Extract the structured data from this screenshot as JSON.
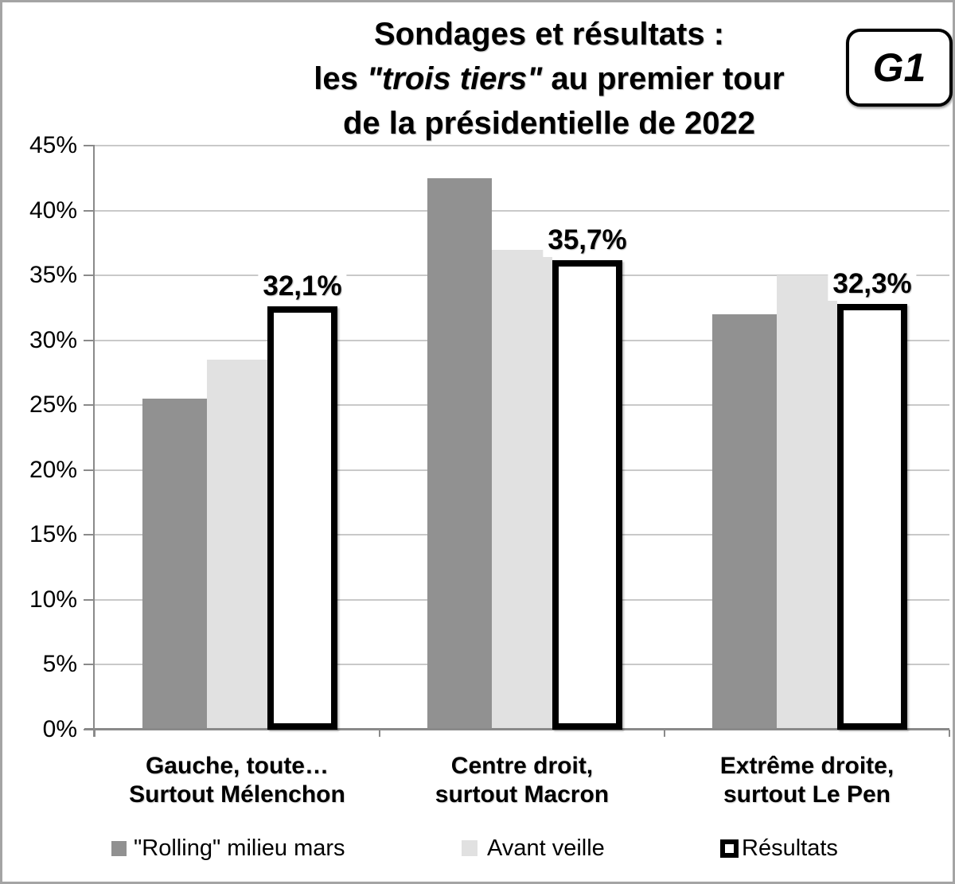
{
  "figure": {
    "badge": "G1",
    "title": {
      "line1": "Sondages et résultats :",
      "line2_prefix": "les ",
      "line2_italic": "\"trois tiers\"",
      "line2_suffix": " au premier tour",
      "line3": "de la présidentielle de 2022"
    }
  },
  "chart_data": {
    "type": "bar",
    "title": "Sondages et résultats : les \"trois tiers\" au premier tour de la présidentielle de 2022",
    "ylim": [
      0,
      45
    ],
    "ytick_step": 5,
    "yticks": [
      "0%",
      "5%",
      "10%",
      "15%",
      "20%",
      "25%",
      "30%",
      "35%",
      "40%",
      "45%"
    ],
    "grid": true,
    "legend_position": "bottom",
    "categories": [
      {
        "line1": "Gauche, toute…",
        "line2": "Surtout Mélenchon"
      },
      {
        "line1": "Centre droit,",
        "line2": "surtout Macron"
      },
      {
        "line1": "Extrême droite,",
        "line2": "surtout Le Pen"
      }
    ],
    "series": [
      {
        "key": "rolling",
        "name": "\"Rolling\" milieu mars",
        "values": [
          25.5,
          42.5,
          32.0
        ],
        "fill": "#919191",
        "outline": null
      },
      {
        "key": "avant-veille",
        "name": "Avant veille",
        "values": [
          28.5,
          37.0,
          35.0
        ],
        "fill": "#e1e1e1",
        "outline": null
      },
      {
        "key": "resultats",
        "name": "Résultats",
        "values": [
          32.1,
          35.7,
          32.3
        ],
        "fill": "#ffffff",
        "outline": "#000000",
        "data_labels": [
          "32,1%",
          "35,7%",
          "32,3%"
        ]
      }
    ]
  },
  "colors": {
    "frame_border": "#a4a4a4",
    "gridline": "#c9c9c9",
    "axis": "#8a8a8a",
    "bar_dark": "#919191",
    "bar_light": "#e1e1e1",
    "bar_outline": "#000000"
  }
}
